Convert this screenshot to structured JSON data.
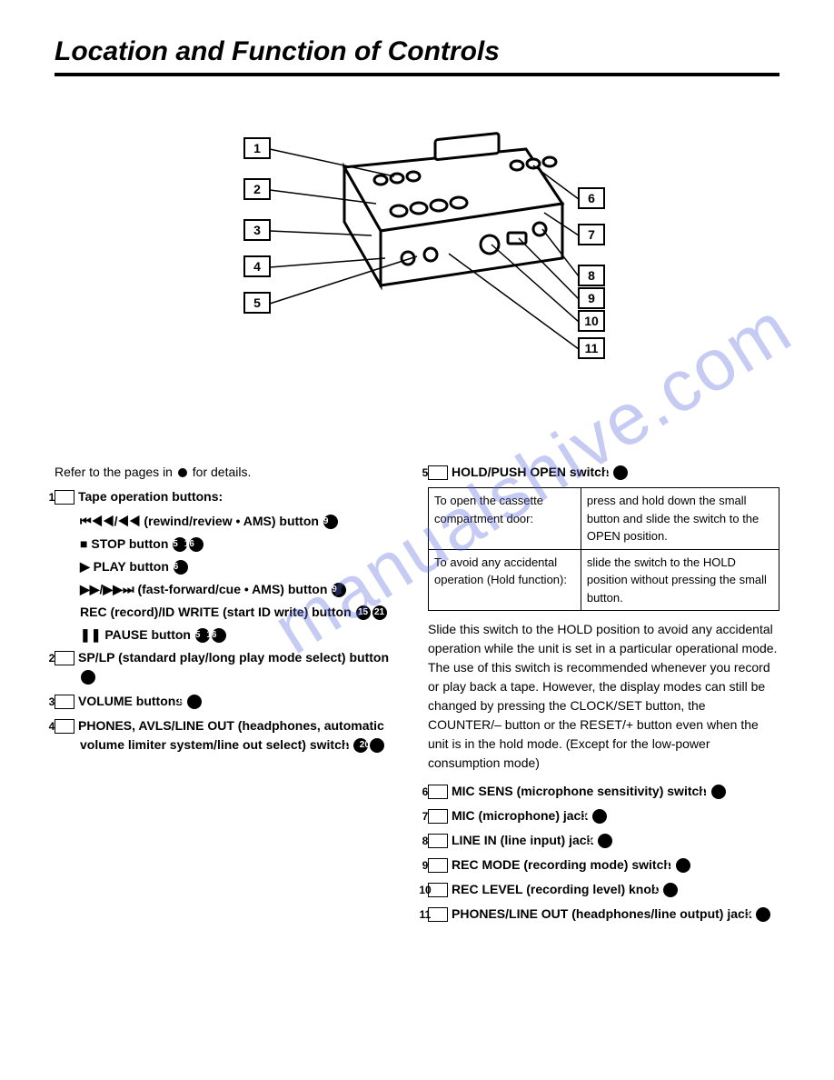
{
  "title": "Location and Function of Controls",
  "watermark": "manualshive.com",
  "diagram": {
    "left_labels": [
      "1",
      "2",
      "3",
      "4",
      "5"
    ],
    "right_labels": [
      "6",
      "7",
      "8",
      "9",
      "10",
      "11"
    ]
  },
  "intro_prefix": "Refer to the pages in ",
  "intro_suffix": " for details.",
  "left_items": [
    {
      "num": "1",
      "title": "Tape operation buttons:",
      "subs": [
        {
          "icon": "⏮◀◀/◀◀",
          "text": " (rewind/review • AMS) button ",
          "refs": [
            "19"
          ]
        },
        {
          "icon": "■",
          "text": " STOP button ",
          "refs": [
            "15",
            "16"
          ]
        },
        {
          "icon": "▶",
          "text": " PLAY button ",
          "refs": [
            "16"
          ]
        },
        {
          "icon": "▶▶/▶▶⏭",
          "text": " (fast-forward/cue • AMS) button ",
          "refs": [
            "19"
          ],
          "wrap": true
        },
        {
          "plain": true,
          "text": "REC (record)/ID WRITE (start ID write) button ",
          "refs": [
            "15",
            "21"
          ]
        },
        {
          "icon": "❚❚",
          "text": " PAUSE button ",
          "refs": [
            "15",
            "16"
          ]
        }
      ]
    },
    {
      "num": "2",
      "title": "SP/LP (standard play/long play mode select) button ",
      "refs": [
        "14"
      ]
    },
    {
      "num": "3",
      "title": "VOLUME buttons ",
      "refs": [
        "18"
      ]
    },
    {
      "num": "4",
      "title": "PHONES, AVLS/LINE OUT (headphones, automatic volume limiter system/line out select) switch ",
      "refs": [
        "15",
        "20"
      ]
    }
  ],
  "right_items_first": {
    "num": "5",
    "title": "HOLD/PUSH OPEN switch ",
    "refs": [
      "11"
    ]
  },
  "hold_table": {
    "rows": [
      {
        "l": "To open the cassette compartment door:",
        "r": "press and hold down the small button and slide the switch to the OPEN position."
      },
      {
        "l": "To avoid any accidental operation (Hold function):",
        "r": "slide the switch to the HOLD position without pressing the small button."
      }
    ]
  },
  "hold_para": "Slide this switch to the HOLD position to avoid any accidental operation while the unit is set in a particular operational mode. The use of this switch is recommended whenever you record or play back a tape. However, the display modes can still be changed by pressing the CLOCK/SET button, the COUNTER/– button or the RESET/+ button even when the unit is in the hold mode. (Except for the low-power consumption mode)",
  "right_items_rest": [
    {
      "num": "6",
      "title": "MIC SENS (microphone sensitivity) switch ",
      "refs": [
        "14"
      ]
    },
    {
      "num": "7",
      "title": "MIC (microphone) jack ",
      "refs": [
        "12"
      ]
    },
    {
      "num": "8",
      "title": "LINE IN (line input) jack ",
      "refs": [
        "12"
      ]
    },
    {
      "num": "9",
      "title": "REC MODE (recording mode) switch ",
      "refs": [
        "14"
      ]
    },
    {
      "num": "10",
      "title": "REC LEVEL (recording level) knob ",
      "refs": [
        "15"
      ]
    },
    {
      "num": "11",
      "title": "PHONES/LINE OUT (headphones/line output) jack ",
      "refs": [
        "17"
      ]
    }
  ]
}
